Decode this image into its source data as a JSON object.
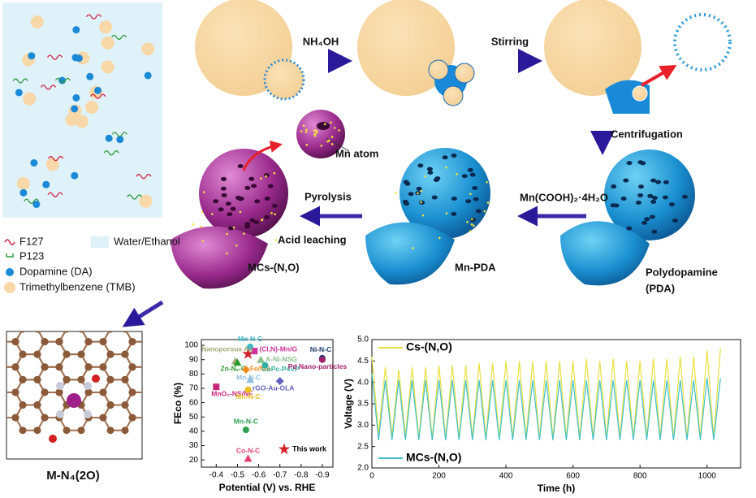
{
  "schematic": {
    "legend": {
      "f127": "F127",
      "p123": "P123",
      "water": "Water/Ethanol",
      "dopamine": "Dopamine (DA)",
      "tmb": "Trimethylbenzene (TMB)"
    },
    "steps": {
      "nh4oh": "NH₄OH",
      "stirring": "Stirring",
      "centrifugation": "Centrifugation",
      "mn_salt": "Mn(COOH)₂·4H₂O",
      "pyrolysis": "Pyrolysis",
      "acid": "Acid leaching",
      "mn_atom": "Mn atom"
    },
    "products": {
      "mcs": "MCs-(N,O)",
      "mnpda": "Mn-PDA",
      "pda": [
        "Polydopamine",
        "(PDA)"
      ]
    },
    "structure_label": "M-N₄(2O)"
  },
  "chart_data": [
    {
      "type": "scatter",
      "xlabel": "Potential (V) vs. RHE",
      "ylabel": "FEco (%)",
      "xlim": [
        -0.33,
        -0.95
      ],
      "ylim": [
        15,
        104
      ],
      "xticks": [
        -0.4,
        -0.5,
        -0.6,
        -0.7,
        -0.8,
        -0.9
      ],
      "yticks": [
        20,
        30,
        40,
        50,
        60,
        70,
        80,
        90,
        100
      ],
      "legend": "lower right",
      "series": [
        {
          "name": "This work",
          "color": "#d4202a",
          "marker": "star",
          "x": [
            -0.55
          ],
          "values": [
            94
          ]
        },
        {
          "name": "Mn-N-C",
          "color": "#3fb8c8",
          "marker": "circle",
          "x": [
            -0.56
          ],
          "values": [
            99
          ]
        },
        {
          "name": "(Cl,N)-Mn/G",
          "color": "#d0309a",
          "marker": "square",
          "x": [
            -0.58
          ],
          "values": [
            96
          ]
        },
        {
          "name": "Nanoporous Ag",
          "color": "#a4a878",
          "marker": "triangle",
          "x": [
            -0.49
          ],
          "values": [
            89
          ]
        },
        {
          "name": "Zn-Nₓ-G",
          "color": "#2a9a2a",
          "marker": "triangle",
          "x": [
            -0.5
          ],
          "values": [
            88
          ]
        },
        {
          "name": "Fe/NG",
          "color": "#f08a18",
          "marker": "diamond",
          "x": [
            -0.54
          ],
          "values": [
            83
          ]
        },
        {
          "name": "A-Ni-NSG",
          "color": "#8cc08c",
          "marker": "triangle",
          "x": [
            -0.61
          ],
          "values": [
            90
          ]
        },
        {
          "name": "CoPc-P4VP",
          "color": "#30b0a0",
          "marker": "circle",
          "x": [
            -0.63
          ],
          "values": [
            86
          ]
        },
        {
          "name": "Mn-N-C",
          "color": "#8fc0e0",
          "marker": "triangle",
          "x": [
            -0.56
          ],
          "values": [
            76
          ]
        },
        {
          "name": "rGO-Au-OLA",
          "color": "#6060c0",
          "marker": "diamond",
          "x": [
            -0.7
          ],
          "values": [
            75
          ]
        },
        {
          "name": "Ni-N-C",
          "color": "#1a3a70",
          "marker": "circle",
          "x": [
            -0.9
          ],
          "values": [
            91
          ]
        },
        {
          "name": "Pd Nano-particles",
          "color": "#a0206a",
          "marker": "circle",
          "x": [
            -0.9
          ],
          "values": [
            90
          ]
        },
        {
          "name": "MnO₂-NS/NF",
          "color": "#c8287a",
          "marker": "square",
          "x": [
            -0.4
          ],
          "values": [
            71
          ]
        },
        {
          "name": "Mn-N-C",
          "color": "#e8c020",
          "marker": "circle",
          "x": [
            -0.55
          ],
          "values": [
            69
          ]
        },
        {
          "name": "Mn-N-C",
          "color": "#30a050",
          "marker": "circle",
          "x": [
            -0.54
          ],
          "values": [
            41
          ]
        },
        {
          "name": "Co-N-C",
          "color": "#e04070",
          "marker": "triangle",
          "x": [
            -0.55
          ],
          "values": [
            21
          ]
        }
      ]
    },
    {
      "type": "line",
      "xlabel": "Time (h)",
      "ylabel": "Voltage (V)",
      "xlim": [
        0,
        1100
      ],
      "ylim": [
        2.0,
        5.0
      ],
      "xticks": [
        0,
        200,
        400,
        600,
        800,
        1000
      ],
      "yticks": [
        {
          "value": 2.0,
          "label": "2.0"
        },
        {
          "value": 2.5,
          "label": "2.5"
        },
        {
          "value": 3.0,
          "label": "3.0"
        },
        {
          "value": 3.5,
          "label": "3.5"
        },
        {
          "value": 4.0,
          "label": "4.0"
        },
        {
          "value": 4.5,
          "label": "4.5"
        },
        {
          "value": 5.0,
          "label": "5.0"
        }
      ],
      "x": [
        0,
        20,
        40,
        60,
        80,
        100,
        120,
        140,
        160,
        180,
        200,
        220,
        240,
        260,
        280,
        300,
        320,
        340,
        360,
        380,
        400,
        420,
        440,
        460,
        480,
        500,
        520,
        540,
        560,
        580,
        600,
        620,
        640,
        660,
        680,
        700,
        720,
        740,
        760,
        780,
        800,
        820,
        840,
        860,
        880,
        900,
        920,
        940,
        960,
        980,
        1000,
        1020,
        1040
      ],
      "series": [
        {
          "name": "Cs-(N,O)",
          "color": "#e8e040",
          "legend_corner": "upper left",
          "values": [
            4.6,
            2.8,
            4.35,
            2.75,
            4.3,
            2.75,
            4.35,
            2.7,
            4.35,
            2.7,
            4.4,
            2.7,
            4.4,
            2.7,
            4.4,
            2.7,
            4.45,
            2.7,
            4.45,
            2.7,
            4.5,
            2.7,
            4.5,
            2.7,
            4.5,
            2.7,
            4.5,
            2.7,
            4.5,
            2.7,
            4.5,
            2.7,
            4.55,
            2.7,
            4.5,
            2.7,
            4.55,
            2.7,
            4.5,
            2.7,
            4.5,
            2.7,
            4.55,
            2.7,
            4.55,
            2.7,
            4.6,
            2.7,
            4.6,
            2.7,
            4.75,
            2.7,
            4.8
          ]
        },
        {
          "name": "MCs-(N,O)",
          "color": "#40c0c8",
          "legend_corner": "lower left",
          "values": [
            4.2,
            2.65,
            4.05,
            2.65,
            4.05,
            2.65,
            4.05,
            2.65,
            4.05,
            2.65,
            4.05,
            2.65,
            4.05,
            2.65,
            4.05,
            2.65,
            4.05,
            2.65,
            4.05,
            2.65,
            4.05,
            2.65,
            4.05,
            2.65,
            4.05,
            2.65,
            4.05,
            2.65,
            4.05,
            2.65,
            4.05,
            2.65,
            4.05,
            2.65,
            4.05,
            2.65,
            4.05,
            2.65,
            4.05,
            2.65,
            4.05,
            2.65,
            4.05,
            2.65,
            4.05,
            2.65,
            4.05,
            2.65,
            4.05,
            2.65,
            4.1,
            2.65,
            4.1
          ]
        }
      ]
    }
  ]
}
